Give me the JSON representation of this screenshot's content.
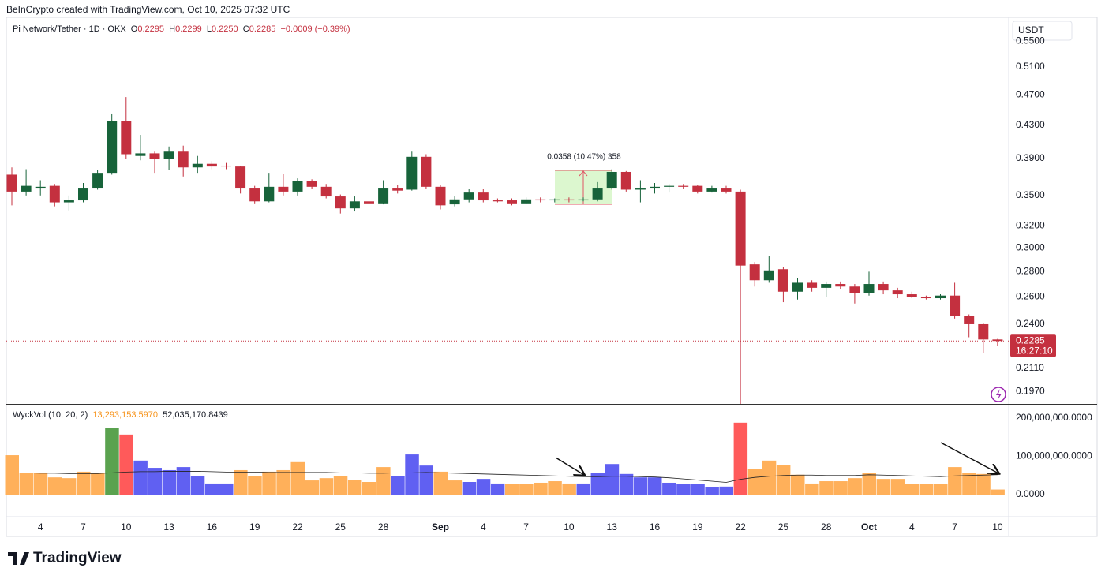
{
  "header": {
    "attribution": "BeInCrypto created with TradingView.com, Oct 10, 2025 07:32 UTC",
    "logo": "TradingView"
  },
  "chart_data": [
    {
      "type": "candlestick",
      "title": "Pi Network/Tether · 1D · OKX",
      "ohlc_prefixes": [
        "O",
        "H",
        "L",
        "C"
      ],
      "last_labels": {
        "open": "0.2295",
        "high": "0.2299",
        "low": "0.2250",
        "close": "0.2285"
      },
      "change_label": "−0.0009 (−0.39%)",
      "currency": "USDT",
      "countdown": "16:27:10",
      "measure_label": "0.0358 (10.47%) 358",
      "open": [
        0.372,
        0.354,
        0.358,
        0.36,
        0.343,
        0.345,
        0.358,
        0.374,
        0.435,
        0.393,
        0.396,
        0.39,
        0.398,
        0.38,
        0.384,
        0.382,
        0.381,
        0.358,
        0.344,
        0.359,
        0.354,
        0.365,
        0.359,
        0.349,
        0.337,
        0.344,
        0.342,
        0.358,
        0.356,
        0.392,
        0.359,
        0.341,
        0.346,
        0.353,
        0.345,
        0.345,
        0.342,
        0.346,
        0.345,
        0.346,
        0.345,
        0.346,
        0.358,
        0.375,
        0.356,
        0.358,
        0.359,
        0.36,
        0.36,
        0.354,
        0.358,
        0.354,
        0.286,
        0.273,
        0.282,
        0.264,
        0.271,
        0.267,
        0.27,
        0.268,
        0.263,
        0.27,
        0.265,
        0.262,
        0.26,
        0.259,
        0.261,
        0.246,
        0.24,
        0.2295
      ],
      "high": [
        0.38,
        0.378,
        0.366,
        0.362,
        0.35,
        0.363,
        0.377,
        0.445,
        0.467,
        0.418,
        0.398,
        0.404,
        0.405,
        0.393,
        0.387,
        0.385,
        0.382,
        0.36,
        0.374,
        0.373,
        0.368,
        0.367,
        0.362,
        0.351,
        0.349,
        0.346,
        0.366,
        0.361,
        0.398,
        0.395,
        0.361,
        0.349,
        0.357,
        0.357,
        0.347,
        0.347,
        0.348,
        0.348,
        0.347,
        0.348,
        0.348,
        0.364,
        0.378,
        0.376,
        0.366,
        0.363,
        0.362,
        0.362,
        0.361,
        0.36,
        0.36,
        0.356,
        0.288,
        0.293,
        0.284,
        0.275,
        0.273,
        0.272,
        0.272,
        0.27,
        0.28,
        0.272,
        0.267,
        0.264,
        0.261,
        0.262,
        0.271,
        0.247,
        0.241,
        0.2299
      ],
      "low": [
        0.34,
        0.35,
        0.35,
        0.339,
        0.335,
        0.343,
        0.356,
        0.372,
        0.39,
        0.388,
        0.374,
        0.377,
        0.37,
        0.374,
        0.378,
        0.378,
        0.352,
        0.342,
        0.343,
        0.35,
        0.35,
        0.357,
        0.347,
        0.332,
        0.334,
        0.341,
        0.341,
        0.352,
        0.355,
        0.357,
        0.336,
        0.339,
        0.343,
        0.343,
        0.343,
        0.34,
        0.341,
        0.343,
        0.343,
        0.343,
        0.344,
        0.344,
        0.356,
        0.354,
        0.343,
        0.352,
        0.353,
        0.357,
        0.352,
        0.353,
        0.352,
        0.186,
        0.268,
        0.271,
        0.256,
        0.258,
        0.264,
        0.26,
        0.266,
        0.255,
        0.261,
        0.262,
        0.259,
        0.259,
        0.258,
        0.258,
        0.244,
        0.231,
        0.2208,
        0.225
      ],
      "close": [
        0.354,
        0.36,
        0.359,
        0.343,
        0.345,
        0.358,
        0.374,
        0.435,
        0.395,
        0.396,
        0.39,
        0.398,
        0.38,
        0.384,
        0.381,
        0.381,
        0.358,
        0.344,
        0.359,
        0.354,
        0.365,
        0.359,
        0.349,
        0.337,
        0.344,
        0.342,
        0.358,
        0.355,
        0.392,
        0.359,
        0.34,
        0.346,
        0.353,
        0.345,
        0.344,
        0.342,
        0.346,
        0.345,
        0.346,
        0.345,
        0.346,
        0.358,
        0.375,
        0.356,
        0.358,
        0.359,
        0.36,
        0.359,
        0.354,
        0.358,
        0.354,
        0.285,
        0.273,
        0.281,
        0.264,
        0.271,
        0.267,
        0.27,
        0.268,
        0.263,
        0.27,
        0.265,
        0.262,
        0.26,
        0.259,
        0.261,
        0.246,
        0.24,
        0.2295,
        0.2285
      ],
      "up_color": "#17633a",
      "down_color": "#c4303f",
      "ylim": [
        0.19,
        0.59
      ],
      "log_scale": true,
      "grid": false,
      "yticks": [
        {
          "value": 0.55,
          "label": "0.5500"
        },
        {
          "value": 0.51,
          "label": "0.5100"
        },
        {
          "value": 0.47,
          "label": "0.4700"
        },
        {
          "value": 0.43,
          "label": "0.4300"
        },
        {
          "value": 0.39,
          "label": "0.3900"
        },
        {
          "value": 0.35,
          "label": "0.3500"
        },
        {
          "value": 0.32,
          "label": "0.3200"
        },
        {
          "value": 0.3,
          "label": "0.3000"
        },
        {
          "value": 0.28,
          "label": "0.2800"
        },
        {
          "value": 0.26,
          "label": "0.2600"
        },
        {
          "value": 0.24,
          "label": "0.2400"
        },
        {
          "value": 0.211,
          "label": "0.2110"
        },
        {
          "value": 0.197,
          "label": "0.1970"
        }
      ]
    },
    {
      "type": "bar",
      "title": "WyckVol (10, 20, 2)",
      "categories": [
        null,
        null,
        "4",
        null,
        null,
        "7",
        null,
        null,
        "10",
        null,
        null,
        "13",
        null,
        null,
        "16",
        null,
        null,
        "19",
        null,
        null,
        "22",
        null,
        null,
        "25",
        null,
        null,
        "28",
        null,
        null,
        null,
        "Sep",
        null,
        null,
        "4",
        null,
        null,
        "7",
        null,
        null,
        "10",
        null,
        null,
        "13",
        null,
        null,
        "16",
        null,
        null,
        "19",
        null,
        null,
        "22",
        null,
        null,
        "25",
        null,
        null,
        "28",
        null,
        null,
        "Oct",
        null,
        null,
        "4",
        null,
        null,
        "7",
        null,
        null,
        "10"
      ],
      "values": [
        103000000,
        56000000,
        56000000,
        45000000,
        43000000,
        60000000,
        56000000,
        175000000,
        157000000,
        89000000,
        70000000,
        64000000,
        72000000,
        49000000,
        29000000,
        29000000,
        64000000,
        49000000,
        60000000,
        64000000,
        85000000,
        37000000,
        43000000,
        49000000,
        39000000,
        33000000,
        72000000,
        49000000,
        105000000,
        76000000,
        60000000,
        37000000,
        33000000,
        41000000,
        29000000,
        27000000,
        27000000,
        31000000,
        35000000,
        29000000,
        29000000,
        56000000,
        80000000,
        54000000,
        45000000,
        45000000,
        31000000,
        27000000,
        27000000,
        19000000,
        21000000,
        188000000,
        68000000,
        89000000,
        78000000,
        52000000,
        29000000,
        35000000,
        35000000,
        43000000,
        56000000,
        41000000,
        41000000,
        27000000,
        27000000,
        27000000,
        72000000,
        56000000,
        54000000,
        13293153.597
      ],
      "last_value_label": "13,293,153.5970",
      "colors": [
        "#ffb05a",
        "#ffb05a",
        "#ffb05a",
        "#ffb05a",
        "#ffb05a",
        "#ffb05a",
        "#ffb05a",
        "#5aa24f",
        "#ff5a5a",
        "#6060f2",
        "#6060f2",
        "#6060f2",
        "#6060f2",
        "#6060f2",
        "#6060f2",
        "#6060f2",
        "#ffb05a",
        "#ffb05a",
        "#ffb05a",
        "#ffb05a",
        "#ffb05a",
        "#ffb05a",
        "#ffb05a",
        "#ffb05a",
        "#ffb05a",
        "#ffb05a",
        "#ffb05a",
        "#6060f2",
        "#6060f2",
        "#6060f2",
        "#ffb05a",
        "#ffb05a",
        "#6060f2",
        "#6060f2",
        "#6060f2",
        "#ffb05a",
        "#ffb05a",
        "#ffb05a",
        "#ffb05a",
        "#ffb05a",
        "#6060f2",
        "#6060f2",
        "#6060f2",
        "#6060f2",
        "#6060f2",
        "#6060f2",
        "#6060f2",
        "#6060f2",
        "#6060f2",
        "#6060f2",
        "#6060f2",
        "#ff5a5a",
        "#ffb05a",
        "#ffb05a",
        "#ffb05a",
        "#ffb05a",
        "#ffb05a",
        "#ffb05a",
        "#ffb05a",
        "#ffb05a",
        "#ffb05a",
        "#ffb05a",
        "#ffb05a",
        "#ffb05a",
        "#ffb05a",
        "#ffb05a",
        "#ffb05a",
        "#ffb05a",
        "#ffb05a",
        "#ffb05a"
      ],
      "ma": {
        "color": "#222222",
        "last_value_label": "52,035,170.8439",
        "values": [
          57000000,
          57000000,
          56000000,
          56000000,
          55000000,
          55000000,
          55000000,
          57000000,
          59000000,
          60000000,
          60000000,
          61000000,
          61000000,
          61000000,
          60000000,
          59000000,
          59000000,
          59000000,
          58000000,
          58000000,
          58000000,
          58000000,
          58000000,
          57000000,
          57000000,
          56000000,
          56000000,
          57000000,
          57000000,
          58000000,
          57000000,
          56000000,
          55000000,
          54000000,
          53000000,
          52000000,
          51000000,
          50000000,
          49000000,
          48000000,
          47000000,
          47000000,
          48000000,
          48000000,
          47000000,
          46000000,
          44000000,
          41000000,
          38000000,
          35000000,
          32000000,
          40000000,
          45000000,
          48000000,
          50000000,
          51000000,
          51000000,
          50000000,
          50000000,
          50000000,
          52000000,
          51000000,
          50000000,
          49000000,
          48000000,
          47000000,
          49000000,
          50000000,
          51000000,
          52035170.8439
        ]
      },
      "ylim": [
        -57700000,
        233000000
      ],
      "yticks": [
        {
          "value": 200000000,
          "label": "200,000,000.0000"
        },
        {
          "value": 100000000,
          "label": "100,000,000.0000"
        },
        {
          "value": 0,
          "label": "0.0000"
        }
      ]
    }
  ]
}
